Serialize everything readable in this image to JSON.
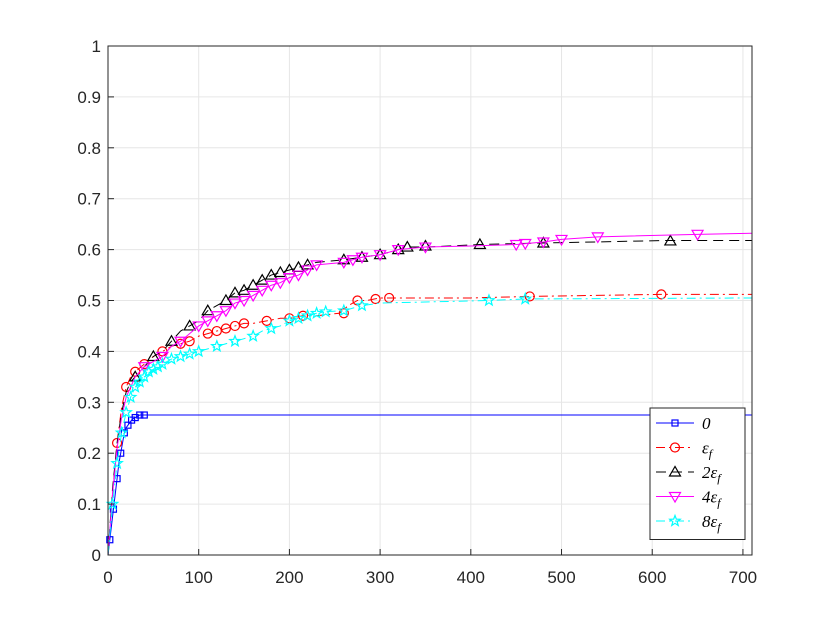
{
  "chart_data": {
    "type": "line",
    "title": "",
    "xlabel": "",
    "ylabel": "",
    "xlim": [
      0,
      710
    ],
    "ylim": [
      0,
      1
    ],
    "xticks": [
      0,
      100,
      200,
      300,
      400,
      500,
      600,
      700
    ],
    "yticks": [
      0,
      0.1,
      0.2,
      0.3,
      0.4,
      0.5,
      0.6,
      0.7,
      0.8,
      0.9,
      1
    ],
    "grid": true,
    "legend_position": "bottom-right",
    "series": [
      {
        "name": "0",
        "color": "#0000ff",
        "dash": "solid",
        "marker": "square",
        "x": [
          0,
          2,
          4,
          6,
          8,
          10,
          12,
          14,
          16,
          18,
          20,
          22,
          24,
          26,
          28,
          30,
          35,
          40,
          710
        ],
        "y": [
          0,
          0.03,
          0.06,
          0.09,
          0.12,
          0.15,
          0.18,
          0.2,
          0.22,
          0.24,
          0.25,
          0.255,
          0.26,
          0.265,
          0.268,
          0.27,
          0.275,
          0.275,
          0.275
        ],
        "markers_x": [
          2,
          6,
          10,
          14,
          18,
          22,
          26,
          30,
          35,
          40
        ],
        "markers_y": [
          0.03,
          0.09,
          0.15,
          0.2,
          0.24,
          0.255,
          0.265,
          0.27,
          0.275,
          0.275
        ]
      },
      {
        "name": "ε_f",
        "color": "#ff0000",
        "dash": "dashdot",
        "marker": "circle",
        "x": [
          0,
          5,
          10,
          15,
          20,
          25,
          30,
          40,
          50,
          60,
          70,
          80,
          90,
          100,
          110,
          120,
          130,
          140,
          150,
          160,
          175,
          190,
          200,
          215,
          230,
          255,
          265,
          275,
          285,
          300,
          310,
          320,
          400,
          465,
          610,
          710
        ],
        "y": [
          0,
          0.12,
          0.22,
          0.29,
          0.33,
          0.35,
          0.36,
          0.375,
          0.39,
          0.4,
          0.41,
          0.415,
          0.42,
          0.43,
          0.435,
          0.44,
          0.445,
          0.45,
          0.455,
          0.455,
          0.46,
          0.465,
          0.465,
          0.47,
          0.47,
          0.475,
          0.49,
          0.5,
          0.5,
          0.505,
          0.505,
          0.505,
          0.505,
          0.508,
          0.512,
          0.512
        ],
        "markers_x": [
          10,
          20,
          30,
          40,
          60,
          80,
          90,
          110,
          120,
          130,
          140,
          150,
          175,
          200,
          215,
          260,
          275,
          295,
          310,
          465,
          610
        ],
        "markers_y": [
          0.22,
          0.33,
          0.36,
          0.375,
          0.4,
          0.415,
          0.42,
          0.435,
          0.44,
          0.445,
          0.45,
          0.455,
          0.46,
          0.465,
          0.47,
          0.475,
          0.5,
          0.503,
          0.505,
          0.508,
          0.512
        ]
      },
      {
        "name": "2ε_f",
        "color": "#000000",
        "dash": "dashed",
        "marker": "triangle-up",
        "x": [
          0,
          5,
          10,
          15,
          20,
          25,
          30,
          40,
          50,
          60,
          70,
          80,
          90,
          100,
          110,
          120,
          130,
          140,
          150,
          160,
          170,
          180,
          190,
          200,
          210,
          220,
          230,
          260,
          280,
          300,
          320,
          330,
          350,
          410,
          480,
          620,
          710
        ],
        "y": [
          0,
          0.13,
          0.22,
          0.28,
          0.32,
          0.34,
          0.35,
          0.37,
          0.39,
          0.4,
          0.42,
          0.44,
          0.45,
          0.46,
          0.48,
          0.49,
          0.5,
          0.515,
          0.52,
          0.53,
          0.54,
          0.55,
          0.555,
          0.56,
          0.565,
          0.57,
          0.575,
          0.58,
          0.585,
          0.59,
          0.6,
          0.605,
          0.605,
          0.61,
          0.613,
          0.618,
          0.618
        ],
        "markers_x": [
          30,
          50,
          70,
          90,
          110,
          130,
          140,
          150,
          160,
          170,
          180,
          190,
          200,
          210,
          220,
          260,
          280,
          300,
          320,
          330,
          350,
          410,
          480,
          620
        ],
        "markers_y": [
          0.35,
          0.39,
          0.42,
          0.45,
          0.48,
          0.5,
          0.515,
          0.52,
          0.53,
          0.54,
          0.55,
          0.555,
          0.56,
          0.565,
          0.57,
          0.58,
          0.585,
          0.59,
          0.6,
          0.605,
          0.607,
          0.61,
          0.613,
          0.617
        ]
      },
      {
        "name": "4ε_f",
        "color": "#ff00ff",
        "dash": "solid",
        "marker": "triangle-down",
        "x": [
          0,
          5,
          10,
          15,
          20,
          25,
          30,
          40,
          50,
          60,
          70,
          80,
          90,
          100,
          110,
          120,
          130,
          140,
          150,
          160,
          170,
          180,
          190,
          200,
          210,
          220,
          230,
          260,
          270,
          280,
          300,
          320,
          350,
          400,
          450,
          480,
          500,
          540,
          650,
          710
        ],
        "y": [
          0,
          0.12,
          0.21,
          0.27,
          0.31,
          0.33,
          0.35,
          0.37,
          0.38,
          0.39,
          0.41,
          0.42,
          0.435,
          0.45,
          0.46,
          0.47,
          0.48,
          0.495,
          0.5,
          0.51,
          0.52,
          0.53,
          0.535,
          0.545,
          0.55,
          0.56,
          0.57,
          0.575,
          0.58,
          0.585,
          0.59,
          0.6,
          0.605,
          0.607,
          0.61,
          0.615,
          0.62,
          0.625,
          0.63,
          0.632
        ],
        "markers_x": [
          40,
          60,
          80,
          100,
          110,
          120,
          130,
          140,
          150,
          160,
          170,
          180,
          190,
          200,
          210,
          220,
          230,
          260,
          270,
          280,
          300,
          320,
          350,
          450,
          460,
          480,
          500,
          540,
          650
        ],
        "markers_y": [
          0.37,
          0.39,
          0.42,
          0.45,
          0.46,
          0.47,
          0.48,
          0.495,
          0.5,
          0.51,
          0.52,
          0.53,
          0.535,
          0.545,
          0.55,
          0.56,
          0.57,
          0.575,
          0.58,
          0.585,
          0.59,
          0.6,
          0.605,
          0.61,
          0.612,
          0.615,
          0.62,
          0.625,
          0.63
        ]
      },
      {
        "name": "8ε_f",
        "color": "#00ffff",
        "dash": "dashdot",
        "marker": "star",
        "x": [
          0,
          5,
          10,
          15,
          20,
          25,
          30,
          40,
          50,
          60,
          70,
          80,
          90,
          100,
          110,
          120,
          130,
          140,
          150,
          160,
          170,
          180,
          190,
          200,
          210,
          220,
          230,
          240,
          260,
          280,
          300,
          420,
          460,
          710
        ],
        "y": [
          0,
          0.1,
          0.18,
          0.24,
          0.28,
          0.31,
          0.33,
          0.35,
          0.365,
          0.375,
          0.385,
          0.39,
          0.395,
          0.4,
          0.405,
          0.41,
          0.415,
          0.42,
          0.425,
          0.43,
          0.44,
          0.445,
          0.45,
          0.46,
          0.465,
          0.47,
          0.475,
          0.478,
          0.48,
          0.49,
          0.495,
          0.5,
          0.503,
          0.505
        ],
        "markers_x": [
          5,
          10,
          15,
          20,
          25,
          30,
          35,
          40,
          45,
          50,
          55,
          60,
          70,
          80,
          90,
          100,
          120,
          140,
          160,
          180,
          200,
          210,
          220,
          230,
          240,
          260,
          280,
          420,
          460
        ],
        "markers_y": [
          0.1,
          0.18,
          0.24,
          0.28,
          0.31,
          0.33,
          0.34,
          0.35,
          0.36,
          0.365,
          0.37,
          0.375,
          0.385,
          0.39,
          0.395,
          0.4,
          0.41,
          0.42,
          0.43,
          0.445,
          0.46,
          0.465,
          0.47,
          0.475,
          0.478,
          0.48,
          0.49,
          0.5,
          0.503
        ]
      }
    ]
  }
}
